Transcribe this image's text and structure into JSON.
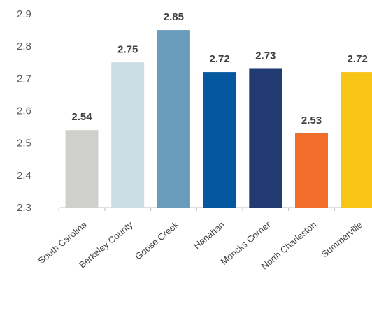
{
  "chart_data": {
    "type": "bar",
    "title": "",
    "xlabel": "",
    "ylabel": "",
    "categories": [
      "South Carolina",
      "Berkeley County",
      "Goose Creek",
      "Hanahan",
      "Moncks Corner",
      "North Charleston",
      "Summerville"
    ],
    "values": [
      2.54,
      2.75,
      2.85,
      2.72,
      2.73,
      2.53,
      2.72
    ],
    "value_labels": [
      "2.54",
      "2.75",
      "2.85",
      "2.72",
      "2.73",
      "2.53",
      "2.72"
    ],
    "colors": [
      "#CFCFCB",
      "#CCDCE5",
      "#6A9BBA",
      "#0557A0",
      "#213A72",
      "#F16E2A",
      "#F8C516"
    ],
    "ylim": [
      2.3,
      2.9
    ],
    "yticks": [
      2.3,
      2.4,
      2.5,
      2.6,
      2.7,
      2.8,
      2.9
    ],
    "ytick_labels": [
      "2.3",
      "2.4",
      "2.5",
      "2.6",
      "2.7",
      "2.8",
      "2.9"
    ],
    "grid": false,
    "legend": "none"
  }
}
